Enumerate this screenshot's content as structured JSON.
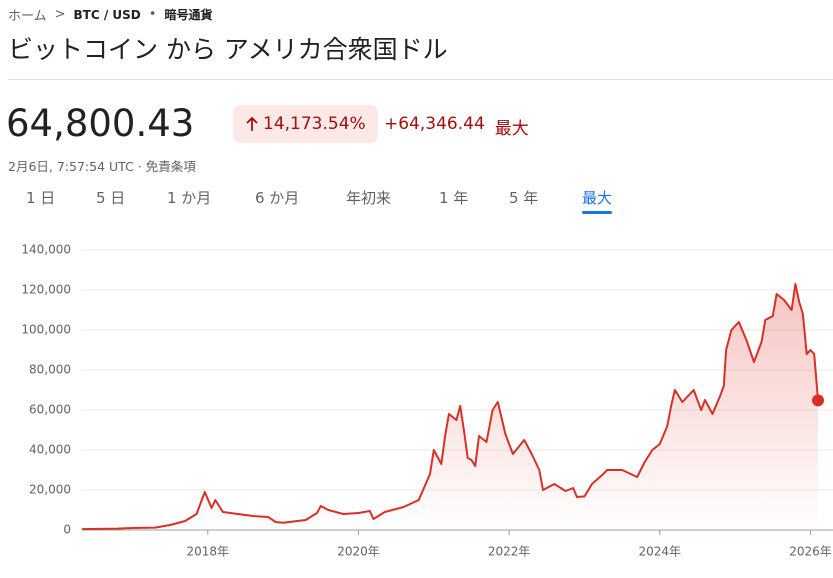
{
  "breadcrumb": {
    "home": "ホーム",
    "separator": ">",
    "pair": "BTC / USD",
    "dot": "•",
    "category": "暗号通貨"
  },
  "header": {
    "title": "ビットコイン から アメリカ合衆国ドル",
    "price": "64,800.43",
    "change_percent": "14,173.54%",
    "change": "+64,346.44",
    "period": "最大",
    "timestamp": "2月6日, 7:57:54 UTC · 免責条項"
  },
  "tabs": [
    "1 日",
    "5 日",
    "1 か月",
    "6 か月",
    "年初来",
    "1 年",
    "5 年",
    "最大"
  ],
  "selected_tab": 7,
  "chart_data": {
    "type": "area-line",
    "color": "#d93025",
    "x": [
      2016.33,
      2016.8,
      2017.0,
      2017.3,
      2017.5,
      2017.7,
      2017.85,
      2017.96,
      2018.05,
      2018.1,
      2018.2,
      2018.4,
      2018.6,
      2018.8,
      2018.9,
      2019.0,
      2019.3,
      2019.45,
      2019.5,
      2019.6,
      2019.8,
      2020.0,
      2020.15,
      2020.2,
      2020.35,
      2020.6,
      2020.8,
      2020.95,
      2021.0,
      2021.1,
      2021.15,
      2021.2,
      2021.3,
      2021.35,
      2021.4,
      2021.45,
      2021.5,
      2021.55,
      2021.6,
      2021.7,
      2021.78,
      2021.85,
      2021.95,
      2022.05,
      2022.2,
      2022.3,
      2022.4,
      2022.45,
      2022.6,
      2022.75,
      2022.85,
      2022.9,
      2023.0,
      2023.1,
      2023.25,
      2023.3,
      2023.5,
      2023.7,
      2023.8,
      2023.9,
      2024.0,
      2024.1,
      2024.15,
      2024.2,
      2024.3,
      2024.4,
      2024.45,
      2024.55,
      2024.6,
      2024.7,
      2024.8,
      2024.85,
      2024.88,
      2024.95,
      2025.05,
      2025.15,
      2025.25,
      2025.35,
      2025.4,
      2025.5,
      2025.55,
      2025.65,
      2025.75,
      2025.8,
      2025.85,
      2025.9,
      2025.95,
      2026.0,
      2026.05,
      2026.1
    ],
    "values": [
      450,
      700,
      1000,
      1200,
      2500,
      4500,
      8000,
      19000,
      11000,
      15000,
      9000,
      8000,
      7000,
      6500,
      4000,
      3600,
      5000,
      8500,
      12000,
      10000,
      8000,
      8500,
      9500,
      5500,
      9000,
      11500,
      15000,
      28000,
      40000,
      33000,
      47000,
      58000,
      55000,
      62000,
      50000,
      36000,
      35000,
      32000,
      47000,
      44000,
      60000,
      64000,
      48000,
      38000,
      45000,
      38000,
      30000,
      20000,
      23000,
      19500,
      21000,
      16500,
      16800,
      23000,
      28000,
      30000,
      30000,
      26500,
      34000,
      40000,
      43000,
      52000,
      62000,
      70000,
      64000,
      68000,
      70000,
      60000,
      65000,
      58000,
      67000,
      72000,
      90000,
      100000,
      104000,
      95000,
      84000,
      94000,
      105000,
      107000,
      118000,
      115000,
      110000,
      123000,
      114000,
      108000,
      88000,
      90000,
      88000,
      64800.43
    ],
    "xlim": [
      2016.33,
      2026.1
    ],
    "xticks": [
      {
        "value": 2018,
        "label": "2018年"
      },
      {
        "value": 2020,
        "label": "2020年"
      },
      {
        "value": 2022,
        "label": "2022年"
      },
      {
        "value": 2024,
        "label": "2024年"
      },
      {
        "value": 2026,
        "label": "2026年"
      }
    ],
    "ylim": [
      0,
      140000
    ],
    "yticks": [
      0,
      {
        "value": 20000,
        "label": "20,000"
      },
      {
        "value": 40000,
        "label": "40,000"
      },
      {
        "value": 60000,
        "label": "60,000"
      },
      {
        "value": 80000,
        "label": "80,000"
      },
      {
        "value": 100000,
        "label": "100,000"
      },
      {
        "value": 120000,
        "label": "120,000"
      },
      {
        "value": 140000,
        "label": "140,000"
      }
    ],
    "grid": true
  }
}
